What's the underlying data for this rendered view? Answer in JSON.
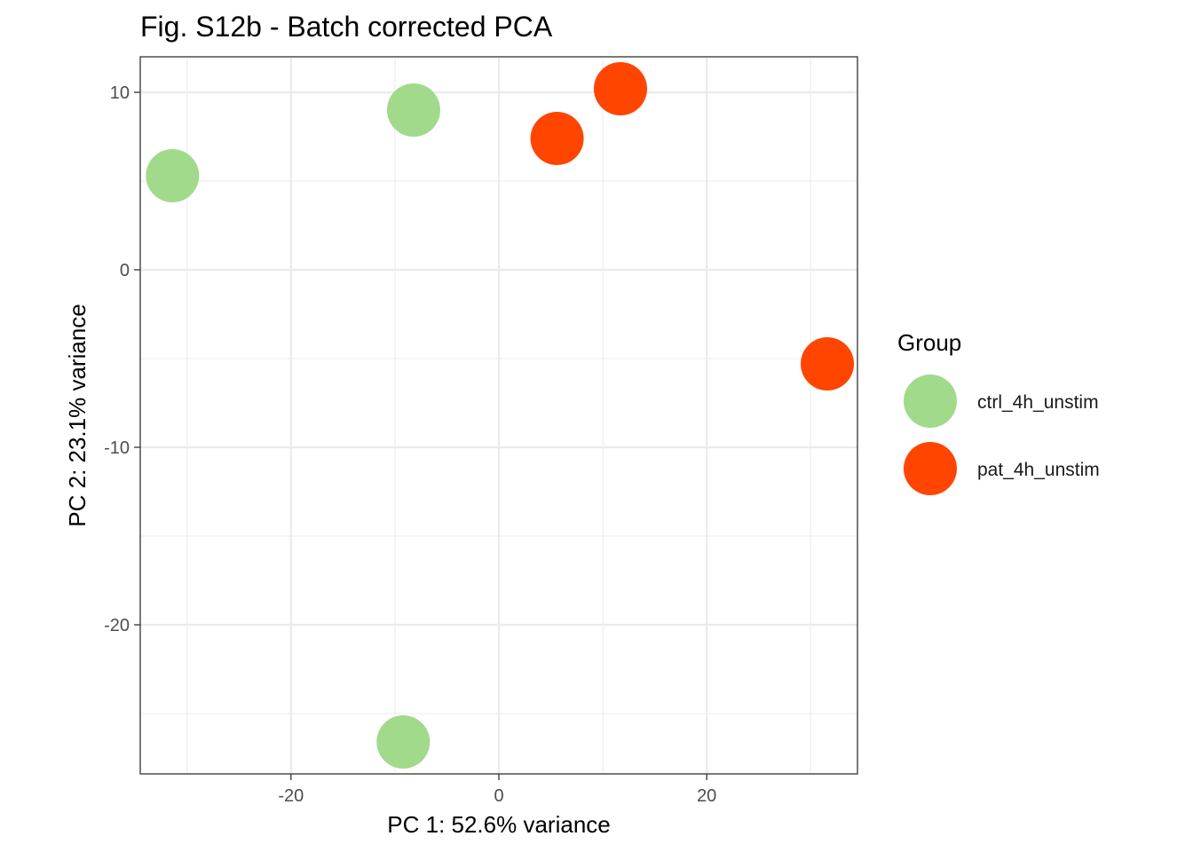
{
  "chart_data": {
    "type": "scatter",
    "title": "Fig. S12b - Batch corrected PCA",
    "xlabel": "PC 1: 52.6% variance",
    "ylabel": "PC 2: 23.1% variance",
    "xlim": [
      -34.5,
      34.5
    ],
    "ylim": [
      -28.4,
      12.0
    ],
    "x_ticks": [
      -20,
      0,
      20
    ],
    "x_tick_labels": [
      "-20",
      "0",
      "20"
    ],
    "y_ticks": [
      -20,
      -10,
      0,
      10
    ],
    "y_tick_labels": [
      "-20",
      "-10",
      "0",
      "10"
    ],
    "grid": true,
    "legend": {
      "title": "Group",
      "position": "right",
      "entries": [
        {
          "label": "ctrl_4h_unstim",
          "color": "#a1da8b"
        },
        {
          "label": "pat_4h_unstim",
          "color": "#ff4500"
        }
      ]
    },
    "series": [
      {
        "name": "ctrl_4h_unstim",
        "color": "#a1da8b",
        "points": [
          {
            "x": -31.4,
            "y": 5.3
          },
          {
            "x": -8.2,
            "y": 9.0
          },
          {
            "x": -9.2,
            "y": -26.6
          }
        ]
      },
      {
        "name": "pat_4h_unstim",
        "color": "#ff4500",
        "points": [
          {
            "x": 5.6,
            "y": 7.4
          },
          {
            "x": 11.7,
            "y": 10.2
          },
          {
            "x": 31.6,
            "y": -5.3
          }
        ]
      }
    ]
  }
}
